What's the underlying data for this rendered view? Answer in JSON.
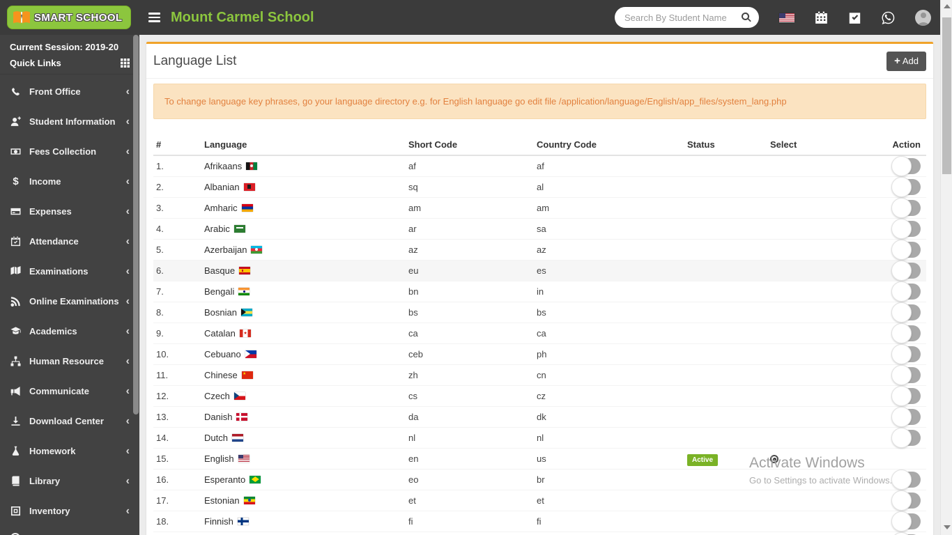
{
  "header": {
    "logo_text": "SMART SCHOOL",
    "school_name": "Mount Carmel School",
    "search_placeholder": "Search By Student Name"
  },
  "sidebar": {
    "session_label": "Current Session: 2019-20",
    "quick_links_label": "Quick Links",
    "items": [
      {
        "label": "Front Office",
        "icon": "phone"
      },
      {
        "label": "Student Information",
        "icon": "user-plus"
      },
      {
        "label": "Fees Collection",
        "icon": "money"
      },
      {
        "label": "Income",
        "icon": "dollar"
      },
      {
        "label": "Expenses",
        "icon": "credit-card"
      },
      {
        "label": "Attendance",
        "icon": "calendar-check"
      },
      {
        "label": "Examinations",
        "icon": "map"
      },
      {
        "label": "Online Examinations",
        "icon": "rss"
      },
      {
        "label": "Academics",
        "icon": "graduation-cap"
      },
      {
        "label": "Human Resource",
        "icon": "sitemap"
      },
      {
        "label": "Communicate",
        "icon": "bullhorn"
      },
      {
        "label": "Download Center",
        "icon": "download"
      },
      {
        "label": "Homework",
        "icon": "flask"
      },
      {
        "label": "Library",
        "icon": "book"
      },
      {
        "label": "Inventory",
        "icon": "box"
      }
    ]
  },
  "page": {
    "title": "Language List",
    "add_button_label": "Add",
    "alert_text": "To change language key phrases, go your language directory e.g. for English language go edit file /application/language/English/app_files/system_lang.php"
  },
  "table": {
    "columns": [
      "#",
      "Language",
      "Short Code",
      "Country Code",
      "Status",
      "Select",
      "Action"
    ],
    "rows": [
      {
        "num": "1.",
        "language": "Afrikaans",
        "flag": "afghanistan",
        "short_code": "af",
        "country_code": "af",
        "status": "",
        "selected": false,
        "toggle": true,
        "highlighted": false
      },
      {
        "num": "2.",
        "language": "Albanian",
        "flag": "albania",
        "short_code": "sq",
        "country_code": "al",
        "status": "",
        "selected": false,
        "toggle": true,
        "highlighted": false
      },
      {
        "num": "3.",
        "language": "Amharic",
        "flag": "armenia",
        "short_code": "am",
        "country_code": "am",
        "status": "",
        "selected": false,
        "toggle": true,
        "highlighted": false
      },
      {
        "num": "4.",
        "language": "Arabic",
        "flag": "saudi-arabia",
        "short_code": "ar",
        "country_code": "sa",
        "status": "",
        "selected": false,
        "toggle": true,
        "highlighted": false
      },
      {
        "num": "5.",
        "language": "Azerbaijan",
        "flag": "azerbaijan",
        "short_code": "az",
        "country_code": "az",
        "status": "",
        "selected": false,
        "toggle": true,
        "highlighted": false
      },
      {
        "num": "6.",
        "language": "Basque",
        "flag": "spain",
        "short_code": "eu",
        "country_code": "es",
        "status": "",
        "selected": false,
        "toggle": true,
        "highlighted": true
      },
      {
        "num": "7.",
        "language": "Bengali",
        "flag": "india",
        "short_code": "bn",
        "country_code": "in",
        "status": "",
        "selected": false,
        "toggle": true,
        "highlighted": false
      },
      {
        "num": "8.",
        "language": "Bosnian",
        "flag": "bahamas",
        "short_code": "bs",
        "country_code": "bs",
        "status": "",
        "selected": false,
        "toggle": true,
        "highlighted": false
      },
      {
        "num": "9.",
        "language": "Catalan",
        "flag": "canada",
        "short_code": "ca",
        "country_code": "ca",
        "status": "",
        "selected": false,
        "toggle": true,
        "highlighted": false
      },
      {
        "num": "10.",
        "language": "Cebuano",
        "flag": "philippines",
        "short_code": "ceb",
        "country_code": "ph",
        "status": "",
        "selected": false,
        "toggle": true,
        "highlighted": false
      },
      {
        "num": "11.",
        "language": "Chinese",
        "flag": "china",
        "short_code": "zh",
        "country_code": "cn",
        "status": "",
        "selected": false,
        "toggle": true,
        "highlighted": false
      },
      {
        "num": "12.",
        "language": "Czech",
        "flag": "czech",
        "short_code": "cs",
        "country_code": "cz",
        "status": "",
        "selected": false,
        "toggle": true,
        "highlighted": false
      },
      {
        "num": "13.",
        "language": "Danish",
        "flag": "denmark",
        "short_code": "da",
        "country_code": "dk",
        "status": "",
        "selected": false,
        "toggle": true,
        "highlighted": false
      },
      {
        "num": "14.",
        "language": "Dutch",
        "flag": "netherlands",
        "short_code": "nl",
        "country_code": "nl",
        "status": "",
        "selected": false,
        "toggle": true,
        "highlighted": false
      },
      {
        "num": "15.",
        "language": "English",
        "flag": "usa",
        "short_code": "en",
        "country_code": "us",
        "status": "Active",
        "selected": true,
        "toggle": false,
        "highlighted": false
      },
      {
        "num": "16.",
        "language": "Esperanto",
        "flag": "brazil",
        "short_code": "eo",
        "country_code": "br",
        "status": "",
        "selected": false,
        "toggle": true,
        "highlighted": false
      },
      {
        "num": "17.",
        "language": "Estonian",
        "flag": "ethiopia",
        "short_code": "et",
        "country_code": "et",
        "status": "",
        "selected": false,
        "toggle": true,
        "highlighted": false
      },
      {
        "num": "18.",
        "language": "Finnish",
        "flag": "finland",
        "short_code": "fi",
        "country_code": "fi",
        "status": "",
        "selected": false,
        "toggle": true,
        "highlighted": false
      },
      {
        "num": "",
        "language": "",
        "flag": "",
        "short_code": "",
        "country_code": "",
        "status": "",
        "selected": false,
        "toggle": true,
        "highlighted": false
      }
    ]
  },
  "watermark": {
    "line1": "Activate Windows",
    "line2": "Go to Settings to activate Windows."
  },
  "colors": {
    "accent_green": "#8cc63e",
    "accent_orange": "#f0a32a",
    "active_badge_green": "#7ab226",
    "header_bg": "#3b3b3b",
    "sidebar_bg": "#424242",
    "alert_bg": "#fbe3c1",
    "alert_text": "#e2813f"
  }
}
